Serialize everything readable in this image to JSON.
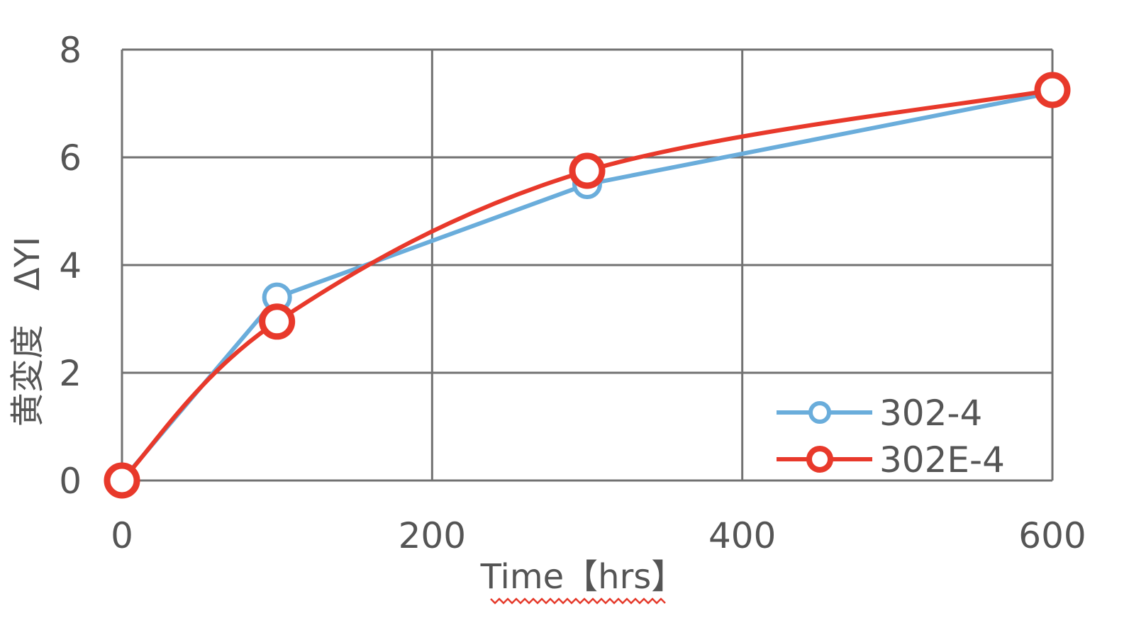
{
  "chart_data": {
    "type": "line",
    "xlabel": "Time【hrs】",
    "ylabel": "黄変度　ΔYI",
    "xlim": [
      0,
      600
    ],
    "ylim": [
      0,
      8
    ],
    "x_ticks": [
      0,
      200,
      400,
      600
    ],
    "y_ticks": [
      0,
      2,
      4,
      6,
      8
    ],
    "grid": true,
    "legend_position": "bottom-right",
    "x": [
      0,
      100,
      300,
      600
    ],
    "series": [
      {
        "name": "302-4",
        "color": "#6aaddb",
        "values": [
          0,
          3.4,
          5.5,
          7.2
        ],
        "marker": "circle-small",
        "smooth": false
      },
      {
        "name": "302E-4",
        "color": "#e8392b",
        "values": [
          0,
          2.95,
          5.75,
          7.25
        ],
        "marker": "circle-large",
        "smooth": true
      }
    ]
  }
}
